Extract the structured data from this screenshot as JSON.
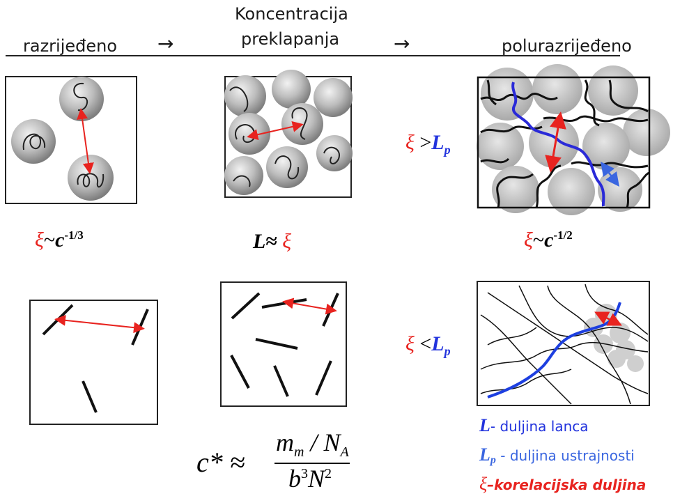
{
  "header": {
    "label_dilute": "razrijeđeno",
    "label_overlap_line1": "Koncentracija",
    "label_overlap_line2": "preklapanja",
    "label_semidilute": "polurazrijeđeno",
    "arrow": "→"
  },
  "formulas": {
    "xi": "ξ",
    "approx": "~",
    "c": "c",
    "exp_dilute": "-1/3",
    "exp_semidilute": "-1/2",
    "L": "L",
    "approx_eq": "≈",
    "gt": ">",
    "lt": "<",
    "Lp_L": "L",
    "Lp_sub": "p",
    "cstar_left": "c* ≈",
    "num_m": "m",
    "num_m_sub": "m",
    "num_slash": " / ",
    "num_N": "N",
    "num_N_sub": "A",
    "den_b": "b",
    "den_b_exp": "3",
    "den_N": "N",
    "den_N_exp": "2"
  },
  "legend": {
    "L_symbol": "L",
    "L_text": "- duljina lanca",
    "Lp_symbol": "L",
    "Lp_sub": "p",
    "Lp_text": " - duljina ustrajnosti",
    "xi_symbol": "ξ",
    "xi_text": "–korelacijska duljina"
  },
  "colors": {
    "red": "#e8231f",
    "blue": "#2233dd",
    "sphere": "#b8b8b8",
    "line": "#111111"
  }
}
